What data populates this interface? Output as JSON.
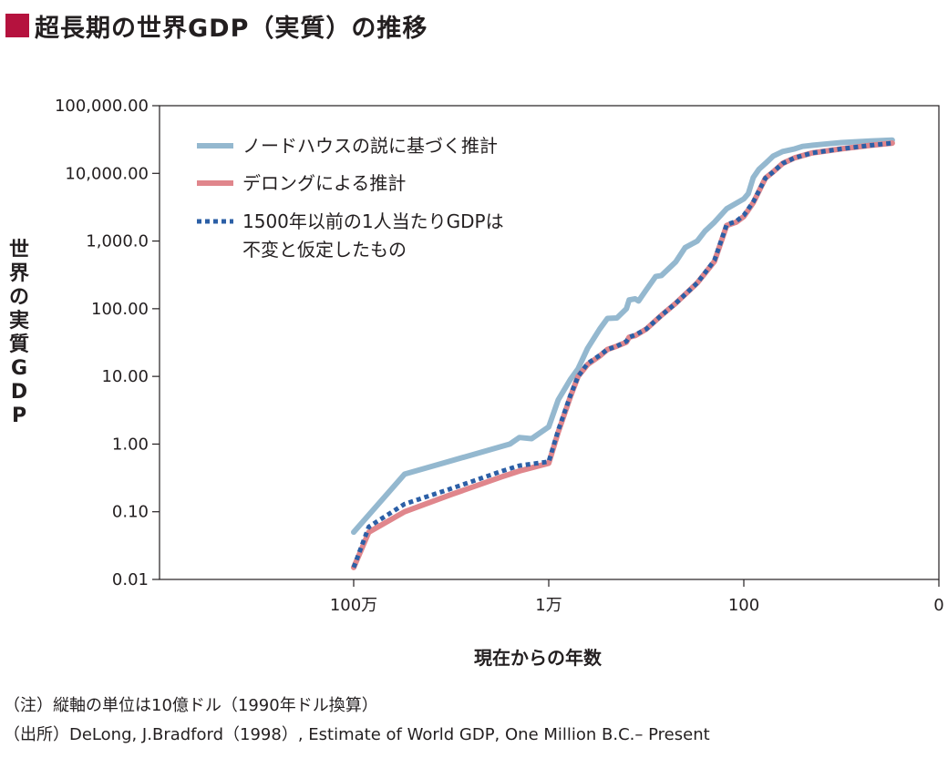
{
  "title": "超長期の世界GDP（実質）の推移",
  "colors": {
    "accent": "#b5123e",
    "nordhaus": "#94b8cf",
    "delong": "#e0868c",
    "fixed": "#2c5fa6"
  },
  "chart_data": {
    "type": "line",
    "ylabel": "世界の実質GDP",
    "xlabel": "現在からの年数",
    "y_scale": "log",
    "ylim": [
      0.01,
      100000
    ],
    "x_scale": "log (years before present)",
    "yticks": [
      "100,000.00",
      "10,000.00",
      "1,000.0",
      "100.00",
      "10.00",
      "1.00",
      "0.10",
      "0.01"
    ],
    "xticks": [
      "100万",
      "1万",
      "100",
      "0"
    ],
    "legend_position": "top-left",
    "series": [
      {
        "name": "ノードハウスの説に基づく推計",
        "style": "solid",
        "x": [
          1000000,
          300000,
          25000,
          20000,
          15000,
          10000,
          8000,
          6000,
          5000,
          4000,
          3000,
          2500,
          2000,
          1600,
          1500,
          1300,
          1200,
          1000,
          800,
          700,
          500,
          400,
          300,
          250,
          200,
          150,
          100,
          90,
          80,
          70,
          60,
          50,
          40,
          30,
          25,
          20,
          15,
          10,
          5,
          3
        ],
        "y": [
          0.05,
          0.36,
          1.0,
          1.25,
          1.2,
          1.8,
          4.5,
          9.0,
          13.0,
          26.0,
          50.0,
          72.0,
          73.0,
          100.0,
          135.0,
          140.0,
          130.0,
          190.0,
          300.0,
          310.0,
          490.0,
          800.0,
          1000.0,
          1400.0,
          1900.0,
          3000.0,
          4200.0,
          5000.0,
          8700.0,
          11500.0,
          14000.0,
          18000.0,
          21000.0,
          23000.0,
          25000.0,
          26000.0,
          27000.0,
          28500.0,
          30000.0,
          31000.0
        ]
      },
      {
        "name": "デロングによる推計",
        "style": "solid",
        "x": [
          1000000,
          700000,
          300000,
          100000,
          30000,
          20000,
          10000,
          8000,
          6000,
          5000,
          4000,
          3000,
          2500,
          2000,
          1600,
          1500,
          1300,
          1000,
          700,
          500,
          300,
          200,
          150,
          120,
          100,
          80,
          60,
          50,
          40,
          30,
          20,
          10,
          5,
          3
        ],
        "y": [
          0.015,
          0.05,
          0.1,
          0.18,
          0.33,
          0.4,
          0.52,
          1.5,
          5.0,
          10.0,
          15.0,
          20.0,
          25.0,
          28.0,
          32.0,
          38.0,
          40.0,
          50.0,
          80.0,
          120.0,
          240.0,
          500.0,
          1700.0,
          1900.0,
          2300.0,
          3700.0,
          8500.0,
          10500.0,
          14000.0,
          17000.0,
          20000.0,
          23000.0,
          26000.0,
          28000.0
        ]
      },
      {
        "name": "1500年以前の1人当たりGDPは\n不変と仮定したもの",
        "style": "dotted",
        "x": [
          1000000,
          700000,
          300000,
          100000,
          30000,
          20000,
          10000,
          8000,
          6000,
          5000,
          4000,
          3000,
          2500,
          2000,
          1600,
          1500,
          1300,
          1000,
          700,
          500,
          300,
          200,
          150,
          120,
          100,
          80,
          60,
          50,
          40,
          30,
          20,
          10,
          5,
          3
        ],
        "y": [
          0.015,
          0.06,
          0.13,
          0.22,
          0.4,
          0.48,
          0.55,
          1.6,
          5.2,
          10.0,
          15.5,
          20.5,
          25.0,
          28.0,
          33.0,
          38.0,
          41.0,
          50.0,
          80.0,
          120.0,
          240.0,
          520.0,
          1750.0,
          1950.0,
          2400.0,
          3800.0,
          8500.0,
          10500.0,
          14000.0,
          17000.0,
          20000.0,
          23000.0,
          26000.0,
          28000.0
        ]
      }
    ]
  },
  "legend": {
    "items": [
      {
        "lines": [
          "ノードハウスの説に基づく推計"
        ]
      },
      {
        "lines": [
          "デロングによる推計"
        ]
      },
      {
        "lines": [
          "1500年以前の1人当たりGDPは",
          "不変と仮定したもの"
        ]
      }
    ]
  },
  "notes": {
    "note1": "（注）縦軸の単位は10億ドル（1990年ドル換算）",
    "note2": "（出所）DeLong, J.Bradford（1998）, Estimate of World GDP, One Million B.C.– Present"
  }
}
